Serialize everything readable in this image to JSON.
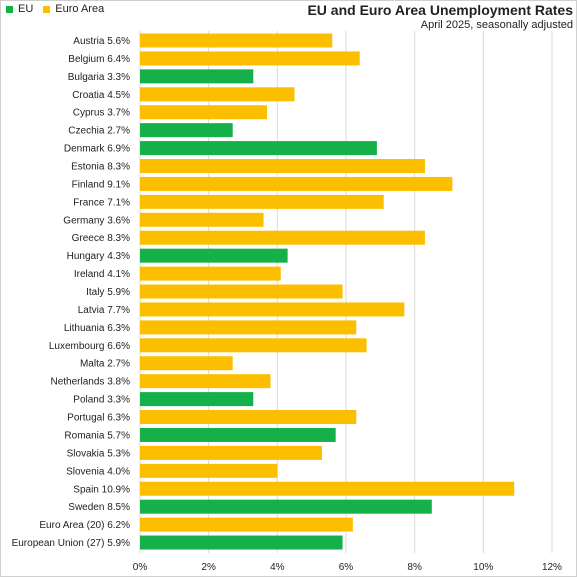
{
  "chart_data": {
    "type": "bar",
    "orientation": "horizontal",
    "title": "EU and Euro Area Unemployment Rates",
    "subtitle": "April 2025, seasonally adjusted",
    "legend": {
      "placement": "top-left",
      "entries": [
        {
          "name": "EU",
          "color": "#16b04a"
        },
        {
          "name": "Euro Area",
          "color": "#fbbf00"
        }
      ]
    },
    "grid": true,
    "xlim": [
      0,
      12
    ],
    "xticks": [
      "0%",
      "2%",
      "4%",
      "6%",
      "8%",
      "10%",
      "12%"
    ],
    "xtick_values": [
      0,
      2,
      4,
      6,
      8,
      10,
      12
    ],
    "categories": [
      {
        "label": "Austria 5.6%",
        "value": 5.6,
        "group": "Euro Area"
      },
      {
        "label": "Belgium 6.4%",
        "value": 6.4,
        "group": "Euro Area"
      },
      {
        "label": "Bulgaria 3.3%",
        "value": 3.3,
        "group": "EU"
      },
      {
        "label": "Croatia 4.5%",
        "value": 4.5,
        "group": "Euro Area"
      },
      {
        "label": "Cyprus 3.7%",
        "value": 3.7,
        "group": "Euro Area"
      },
      {
        "label": "Czechia 2.7%",
        "value": 2.7,
        "group": "EU"
      },
      {
        "label": "Denmark 6.9%",
        "value": 6.9,
        "group": "EU"
      },
      {
        "label": "Estonia 8.3%",
        "value": 8.3,
        "group": "Euro Area"
      },
      {
        "label": "Finland 9.1%",
        "value": 9.1,
        "group": "Euro Area"
      },
      {
        "label": "France 7.1%",
        "value": 7.1,
        "group": "Euro Area"
      },
      {
        "label": "Germany 3.6%",
        "value": 3.6,
        "group": "Euro Area"
      },
      {
        "label": "Greece 8.3%",
        "value": 8.3,
        "group": "Euro Area"
      },
      {
        "label": "Hungary 4.3%",
        "value": 4.3,
        "group": "EU"
      },
      {
        "label": "Ireland 4.1%",
        "value": 4.1,
        "group": "Euro Area"
      },
      {
        "label": "Italy 5.9%",
        "value": 5.9,
        "group": "Euro Area"
      },
      {
        "label": "Latvia 7.7%",
        "value": 7.7,
        "group": "Euro Area"
      },
      {
        "label": "Lithuania 6.3%",
        "value": 6.3,
        "group": "Euro Area"
      },
      {
        "label": "Luxembourg 6.6%",
        "value": 6.6,
        "group": "Euro Area"
      },
      {
        "label": "Malta 2.7%",
        "value": 2.7,
        "group": "Euro Area"
      },
      {
        "label": "Netherlands 3.8%",
        "value": 3.8,
        "group": "Euro Area"
      },
      {
        "label": "Poland 3.3%",
        "value": 3.3,
        "group": "EU"
      },
      {
        "label": "Portugal 6.3%",
        "value": 6.3,
        "group": "Euro Area"
      },
      {
        "label": "Romania 5.7%",
        "value": 5.7,
        "group": "EU"
      },
      {
        "label": "Slovakia 5.3%",
        "value": 5.3,
        "group": "Euro Area"
      },
      {
        "label": "Slovenia 4.0%",
        "value": 4.0,
        "group": "Euro Area"
      },
      {
        "label": "Spain 10.9%",
        "value": 10.9,
        "group": "Euro Area"
      },
      {
        "label": "Sweden 8.5%",
        "value": 8.5,
        "group": "EU"
      },
      {
        "label": "Euro Area (20) 6.2%",
        "value": 6.2,
        "group": "Euro Area"
      },
      {
        "label": "European Union (27) 5.9%",
        "value": 5.9,
        "group": "EU"
      }
    ]
  }
}
